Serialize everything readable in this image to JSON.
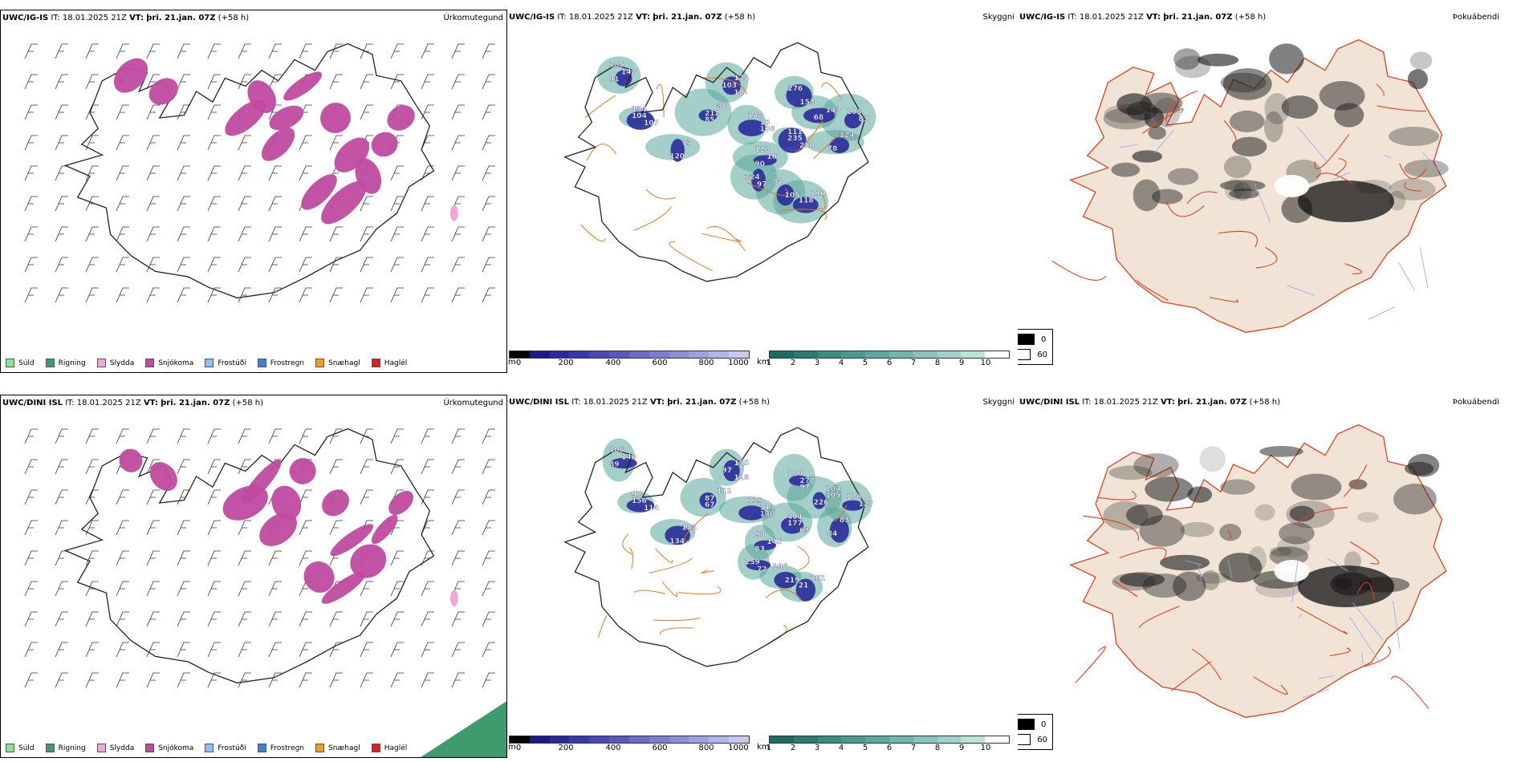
{
  "rows": [
    {
      "model": "UWC/IG-IS",
      "it_label": "IT:",
      "it_value": "18.01.2025 21Z",
      "vt_label": "VT:",
      "vt_value": "þri. 21.jan. 07Z",
      "lead": "(+58 h)",
      "precip_title": "Úrkomutegund",
      "vis_title": "Skyggni",
      "fog_title": "Þokuábendi",
      "ceiling_labels": [
        "185",
        "104",
        "85",
        "124",
        "106",
        "128",
        "235",
        "153",
        "143",
        "78",
        "103",
        "105",
        "110",
        "224",
        "120",
        "148",
        "107",
        "88",
        "103",
        "148",
        "10",
        "250",
        "276",
        "68",
        "124",
        "83",
        "84",
        "118",
        "97",
        "73",
        "91",
        "134",
        "212",
        "12",
        "10",
        "90",
        "111"
      ],
      "vis_labels": []
    },
    {
      "model": "UWC/DINI ISL",
      "it_label": "IT:",
      "it_value": "18.01.2025 21Z",
      "vt_label": "VT:",
      "vt_value": "þri. 21.jan. 07Z",
      "lead": "(+58 h)",
      "precip_title": "Úrkomutegund",
      "vis_title": "Skyggni",
      "fog_title": "Þokuábendi",
      "ceiling_labels": [
        "106",
        "156",
        "67",
        "155",
        "130",
        "98",
        "177",
        "97",
        "105",
        "84",
        "178",
        "219",
        "161",
        "259",
        "134",
        "140",
        "114",
        "111",
        "97",
        "129",
        "145",
        "63",
        "110",
        "226",
        "83",
        "127",
        "106",
        "21",
        "72",
        "153",
        "89",
        "97",
        "87",
        "118",
        "113",
        "83",
        "404",
        "278",
        "104"
      ],
      "vis_labels": []
    }
  ],
  "precip_legend": [
    {
      "label": "Súld",
      "color": "#8ee28e"
    },
    {
      "label": "Rigning",
      "color": "#3f9a6e"
    },
    {
      "label": "Slydda",
      "color": "#f0a8d8"
    },
    {
      "label": "Snjókoma",
      "color": "#c04aa0"
    },
    {
      "label": "Frostúði",
      "color": "#8fbfef"
    },
    {
      "label": "Frostregn",
      "color": "#3f7fd0"
    },
    {
      "label": "Snæhagl",
      "color": "#f0a020"
    },
    {
      "label": "Haglél",
      "color": "#e02020"
    }
  ],
  "ceiling_bar": {
    "unit": "m",
    "ticks": [
      "0",
      "200",
      "400",
      "600",
      "800",
      "1000"
    ]
  },
  "vis_bar": {
    "unit": "km",
    "ticks": [
      "1",
      "2",
      "3",
      "4",
      "5",
      "6",
      "7",
      "8",
      "9",
      "10"
    ]
  },
  "fog_legend": {
    "values": [
      "0",
      "60"
    ]
  },
  "colors": {
    "snow": "#c04aa0",
    "sleet": "#f0a8d8",
    "ceiling": "#2a2a9a",
    "visibility": "#5aa89a",
    "roads": "#e07a20",
    "fog_land": "#f1e4d6",
    "fog_roads": "#e04020",
    "rain": "#3f9a6e"
  }
}
